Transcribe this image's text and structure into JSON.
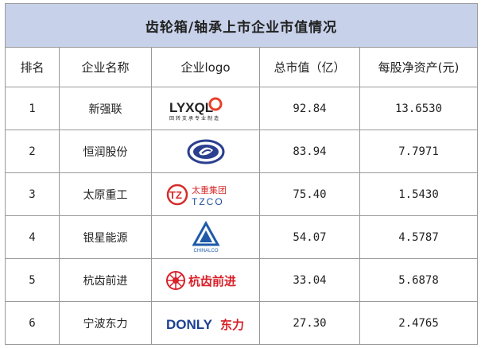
{
  "title": "齿轮箱/轴承上市企业市值情况",
  "columns": [
    "排名",
    "企业名称",
    "企业logo",
    "总市值（亿）",
    "每股净资产(元)"
  ],
  "rows": [
    {
      "rank": "1",
      "name": "新强联",
      "logo": "lyxql-logo",
      "logo_text": "LYXQL",
      "logo_sub": "回转支承专业制造",
      "market_cap": "92.84",
      "bvps": "13.6530"
    },
    {
      "rank": "2",
      "name": "恒润股份",
      "logo": "hengrun-logo",
      "market_cap": "83.94",
      "bvps": "7.7971"
    },
    {
      "rank": "3",
      "name": "太原重工",
      "logo": "tzco-logo",
      "logo_text_cn": "太重集团",
      "logo_text_en": "TZCO",
      "market_cap": "75.40",
      "bvps": "1.5430"
    },
    {
      "rank": "4",
      "name": "银星能源",
      "logo": "chinalco-logo",
      "logo_text": "CHINALCO",
      "market_cap": "54.07",
      "bvps": "4.5787"
    },
    {
      "rank": "5",
      "name": "杭齿前进",
      "logo": "hangchi-logo",
      "logo_text": "杭齿前进",
      "market_cap": "33.04",
      "bvps": "5.6878"
    },
    {
      "rank": "6",
      "name": "宁波东力",
      "logo": "donly-logo",
      "logo_text_en": "DONLY",
      "logo_text_cn": "东力",
      "market_cap": "27.30",
      "bvps": "2.4765"
    }
  ],
  "colors": {
    "title_bg": "#c7d1e9",
    "border": "#9a9a9a",
    "lyxql_red": "#e8402a",
    "hengrun_blue": "#2a3f8f",
    "tzco_red": "#d62b2b",
    "tzco_blue": "#1f4fa0",
    "chinalco_blue": "#1f5aa8",
    "hangchi_red": "#d8202a",
    "donly_blue": "#1c3f94",
    "donly_red": "#d71f27"
  }
}
